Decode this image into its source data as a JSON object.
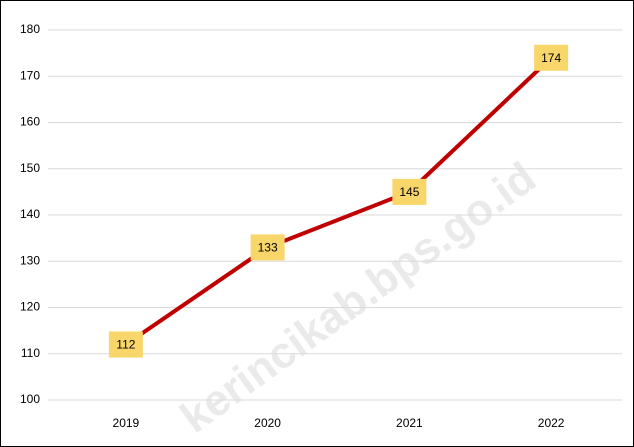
{
  "chart_data": {
    "type": "line",
    "categories": [
      "2019",
      "2020",
      "2021",
      "2022"
    ],
    "series": [
      {
        "name": null,
        "color": "#c00000",
        "values": [
          112,
          133,
          145,
          174
        ]
      }
    ],
    "ylim": [
      100,
      180
    ],
    "yticks": [
      100,
      110,
      120,
      130,
      140,
      150,
      160,
      170,
      180
    ],
    "grid": true,
    "label_color": "#f9d669",
    "watermark": "kerincikab.bps.go.id"
  }
}
